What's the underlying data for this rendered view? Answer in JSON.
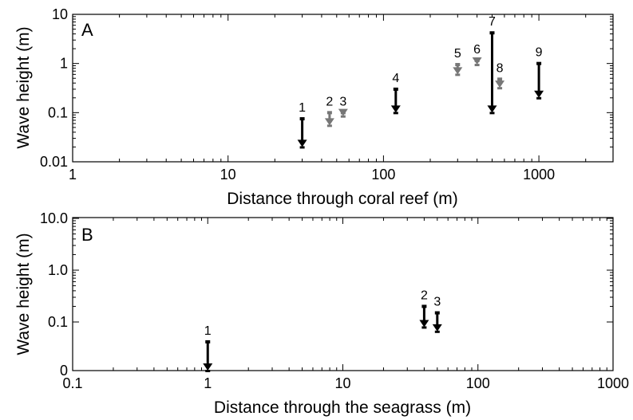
{
  "chart_data": [
    {
      "type": "range",
      "panel_label": "A",
      "xlabel": "Distance through coral reef (m)",
      "ylabel": "Wave height (m)",
      "x_scale": "log",
      "y_scale": "log",
      "xlim": [
        1,
        3000
      ],
      "ylim": [
        0.01,
        10
      ],
      "x_ticks": [
        1,
        10,
        100,
        1000
      ],
      "x_tick_labels": [
        "1",
        "10",
        "100",
        "1000"
      ],
      "y_ticks": [
        0.01,
        0.1,
        1,
        10
      ],
      "y_tick_labels": [
        "0.01",
        "0.1",
        "1",
        "10"
      ],
      "colors": {
        "dark": "#000000",
        "grey": "#777777"
      },
      "points": [
        {
          "label": "1",
          "x": 30,
          "y_start": 0.075,
          "y_end": 0.02,
          "color": "dark"
        },
        {
          "label": "2",
          "x": 45,
          "y_start": 0.1,
          "y_end": 0.055,
          "color": "grey"
        },
        {
          "label": "3",
          "x": 55,
          "y_start": 0.1,
          "y_end": 0.085,
          "color": "grey"
        },
        {
          "label": "4",
          "x": 120,
          "y_start": 0.3,
          "y_end": 0.1,
          "color": "dark"
        },
        {
          "label": "5",
          "x": 300,
          "y_start": 0.95,
          "y_end": 0.6,
          "color": "grey"
        },
        {
          "label": "6",
          "x": 400,
          "y_start": 1.15,
          "y_end": 0.95,
          "color": "grey"
        },
        {
          "label": "7",
          "x": 500,
          "y_start": 4.2,
          "y_end": 0.1,
          "color": "dark"
        },
        {
          "label": "8",
          "x": 560,
          "y_start": 0.48,
          "y_end": 0.32,
          "color": "grey"
        },
        {
          "label": "9",
          "x": 1000,
          "y_start": 1.0,
          "y_end": 0.2,
          "color": "dark"
        }
      ]
    },
    {
      "type": "range",
      "panel_label": "B",
      "xlabel": "Distance through the seagrass (m)",
      "ylabel": "Wave height (m)",
      "x_scale": "log",
      "xlim": [
        0.1,
        1000
      ],
      "x_ticks": [
        0.1,
        1,
        10,
        100,
        1000
      ],
      "x_tick_labels": [
        "0.1",
        "1",
        "10",
        "100",
        "1000"
      ],
      "y_tick_labels": [
        "0",
        "0.1",
        "1.0",
        "10.0"
      ],
      "colors": {
        "dark": "#000000"
      },
      "points": [
        {
          "label": "1",
          "x": 1,
          "y_start": 0.035,
          "y_end": 0,
          "color": "dark"
        },
        {
          "label": "2",
          "x": 40,
          "y_start": 0.2,
          "y_end": 0.08,
          "color": "dark"
        },
        {
          "label": "3",
          "x": 50,
          "y_start": 0.15,
          "y_end": 0.065,
          "color": "dark"
        }
      ]
    }
  ]
}
